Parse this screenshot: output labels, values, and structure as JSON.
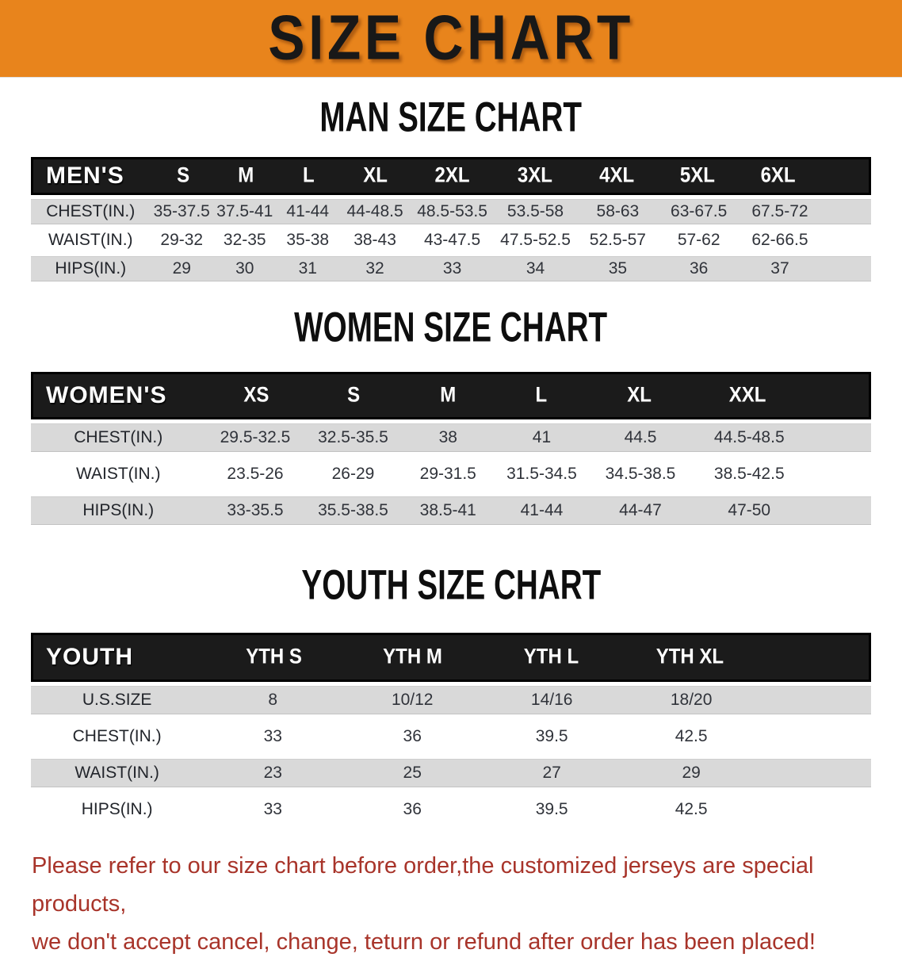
{
  "banner": {
    "title": "SIZE CHART"
  },
  "sections": {
    "men": {
      "heading": "MAN SIZE CHART",
      "table": {
        "group_label": "MEN'S",
        "sizes": [
          "S",
          "M",
          "L",
          "XL",
          "2XL",
          "3XL",
          "4XL",
          "5XL",
          "6XL"
        ],
        "rows": [
          {
            "label": "CHEST(IN.)",
            "values": [
              "35-37.5",
              "37.5-41",
              "41-44",
              "44-48.5",
              "48.5-53.5",
              "53.5-58",
              "58-63",
              "63-67.5",
              "67.5-72"
            ]
          },
          {
            "label": "WAIST(IN.)",
            "values": [
              "29-32",
              "32-35",
              "35-38",
              "38-43",
              "43-47.5",
              "47.5-52.5",
              "52.5-57",
              "57-62",
              "62-66.5"
            ]
          },
          {
            "label": "HIPS(IN.)",
            "values": [
              "29",
              "30",
              "31",
              "32",
              "33",
              "34",
              "35",
              "36",
              "37"
            ]
          }
        ]
      }
    },
    "women": {
      "heading": "WOMEN SIZE CHART",
      "table": {
        "group_label": "WOMEN'S",
        "sizes": [
          "XS",
          "S",
          "M",
          "L",
          "XL",
          "XXL"
        ],
        "rows": [
          {
            "label": "CHEST(IN.)",
            "values": [
              "29.5-32.5",
              "32.5-35.5",
              "38",
              "41",
              "44.5",
              "44.5-48.5"
            ]
          },
          {
            "label": "WAIST(IN.)",
            "values": [
              "23.5-26",
              "26-29",
              "29-31.5",
              "31.5-34.5",
              "34.5-38.5",
              "38.5-42.5"
            ]
          },
          {
            "label": "HIPS(IN.)",
            "values": [
              "33-35.5",
              "35.5-38.5",
              "38.5-41",
              "41-44",
              "44-47",
              "47-50"
            ]
          }
        ]
      }
    },
    "youth": {
      "heading": "YOUTH SIZE CHART",
      "table": {
        "group_label": "YOUTH",
        "sizes": [
          "YTH S",
          "YTH M",
          "YTH L",
          "YTH XL"
        ],
        "rows": [
          {
            "label": "U.S.SIZE",
            "values": [
              "8",
              "10/12",
              "14/16",
              "18/20"
            ]
          },
          {
            "label": "CHEST(IN.)",
            "values": [
              "33",
              "36",
              "39.5",
              "42.5"
            ]
          },
          {
            "label": "WAIST(IN.)",
            "values": [
              "23",
              "25",
              "27",
              "29"
            ]
          },
          {
            "label": "HIPS(IN.)",
            "values": [
              "33",
              "36",
              "39.5",
              "42.5"
            ]
          }
        ]
      }
    }
  },
  "disclaimer": {
    "line1": "Please refer to our size chart before order,the customized jerseys are special products,",
    "line2": "we don't accept cancel, change, teturn or refund after order has been placed!"
  },
  "colors": {
    "banner_background": "#E8841C",
    "table_header_bar": "#1B1B1B",
    "row_shade": "#D9D9D9",
    "disclaimer_text": "#A8342A"
  }
}
